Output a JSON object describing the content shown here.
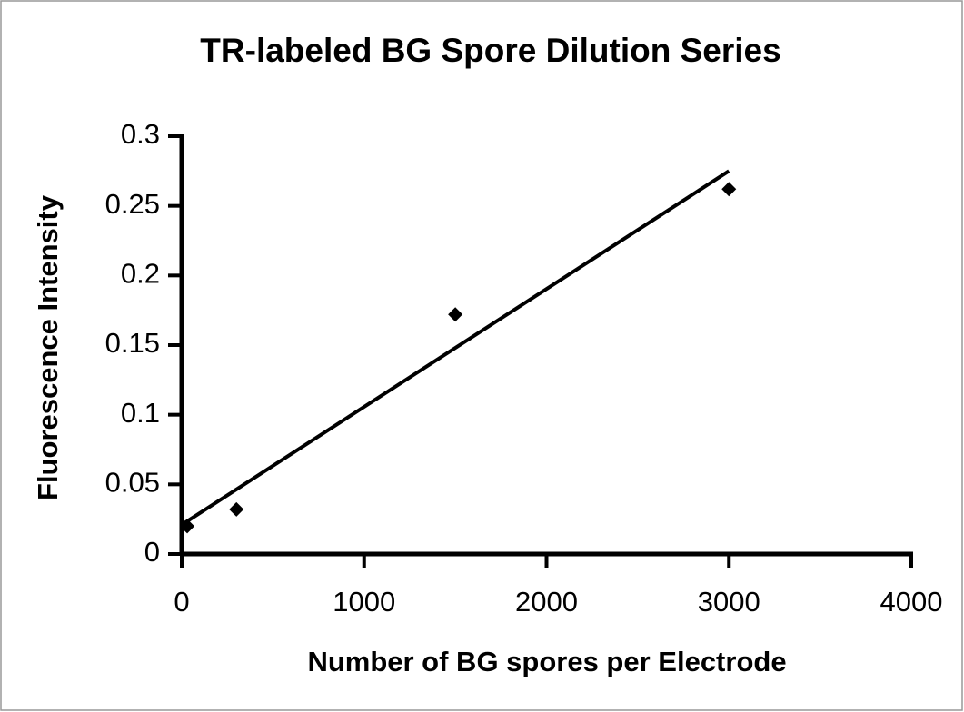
{
  "chart_data": {
    "type": "scatter",
    "title": "TR-labeled BG Spore Dilution Series",
    "x_label": "Number of BG spores per Electrode",
    "y_label": "Fluorescence Intensity",
    "x": [
      30,
      300,
      1500,
      3000
    ],
    "values": [
      0.02,
      0.032,
      0.172,
      0.262
    ],
    "color": "#000000",
    "trend_line": {
      "x": [
        0,
        3000
      ],
      "values": [
        0.021,
        0.275
      ]
    },
    "xlim": [
      0,
      4000
    ],
    "xticks": [
      0,
      1000,
      2000,
      3000,
      4000
    ],
    "ylim": [
      0,
      0.3
    ],
    "yticks": [
      0,
      0.05,
      0.1,
      0.15,
      0.2,
      0.25,
      0.3
    ],
    "grid": false
  }
}
